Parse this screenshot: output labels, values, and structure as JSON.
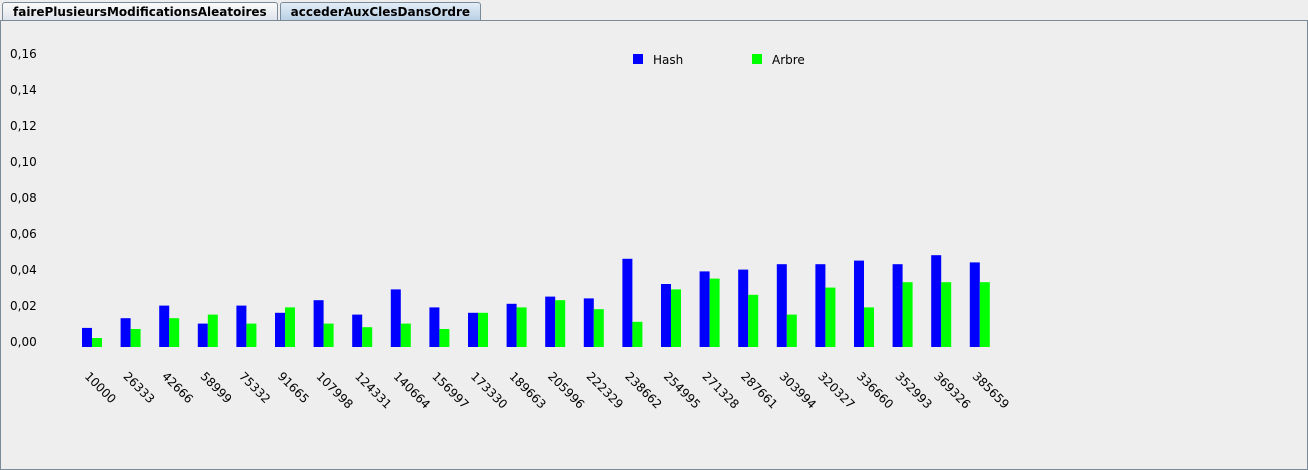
{
  "tabs": [
    "fairePlusieursModificationsAleatoires",
    "accederAuxClesDansOrdre"
  ],
  "chart_data": {
    "type": "bar",
    "categories": [
      "10000",
      "26333",
      "42666",
      "58999",
      "75332",
      "91665",
      "107998",
      "124331",
      "140664",
      "156997",
      "173330",
      "189663",
      "205996",
      "222329",
      "238662",
      "254995",
      "271328",
      "287661",
      "303994",
      "320327",
      "336660",
      "352993",
      "369326",
      "385659"
    ],
    "series": [
      {
        "name": "Hash",
        "color": "#0000ff",
        "values": [
          0.0106,
          0.016,
          0.023,
          0.013,
          0.023,
          0.019,
          0.026,
          0.018,
          0.032,
          0.022,
          0.019,
          0.024,
          0.028,
          0.027,
          0.049,
          0.035,
          0.042,
          0.043,
          0.046,
          0.046,
          0.048,
          0.046,
          0.051,
          0.047
        ]
      },
      {
        "name": "Arbre",
        "color": "#00ff00",
        "values": [
          0.005,
          0.01,
          0.016,
          0.018,
          0.013,
          0.022,
          0.013,
          0.011,
          0.013,
          0.01,
          0.019,
          0.022,
          0.026,
          0.021,
          0.014,
          0.032,
          0.038,
          0.029,
          0.018,
          0.033,
          0.022,
          0.036,
          0.036,
          0.036
        ]
      }
    ],
    "ylim": [
      0,
      0.17
    ],
    "yticks": [
      {
        "value": 0,
        "label": "0,00"
      },
      {
        "value": 0.02,
        "label": "0,02"
      },
      {
        "value": 0.04,
        "label": "0,04"
      },
      {
        "value": 0.06,
        "label": "0,06"
      },
      {
        "value": 0.08,
        "label": "0,08"
      },
      {
        "value": 0.1,
        "label": "0,10"
      },
      {
        "value": 0.12,
        "label": "0,12"
      },
      {
        "value": 0.14,
        "label": "0,14"
      },
      {
        "value": 0.16,
        "label": "0,16"
      }
    ]
  }
}
